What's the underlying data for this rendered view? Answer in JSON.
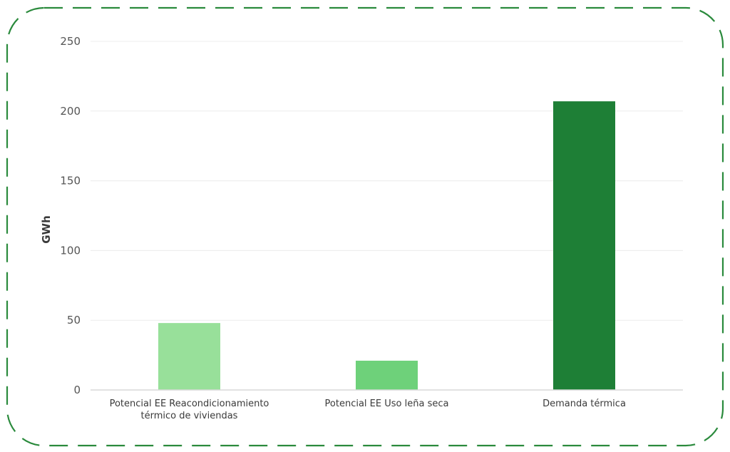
{
  "chart_data": {
    "type": "bar",
    "categories": [
      [
        "Potencial EE Reacondicionamiento",
        "térmico de viviendas"
      ],
      [
        "Potencial EE Uso leña seca"
      ],
      [
        "Demanda térmica"
      ]
    ],
    "values": [
      48,
      21,
      207
    ],
    "bar_colors": [
      "#98e09a",
      "#6ed17a",
      "#1e7f36"
    ],
    "title": "",
    "xlabel": "",
    "ylabel": "GWh",
    "ylim": [
      0,
      250
    ],
    "yticks": [
      0,
      50,
      100,
      150,
      200,
      250
    ],
    "grid": true,
    "legend": "none",
    "frame_color": "#2a8a3c"
  }
}
